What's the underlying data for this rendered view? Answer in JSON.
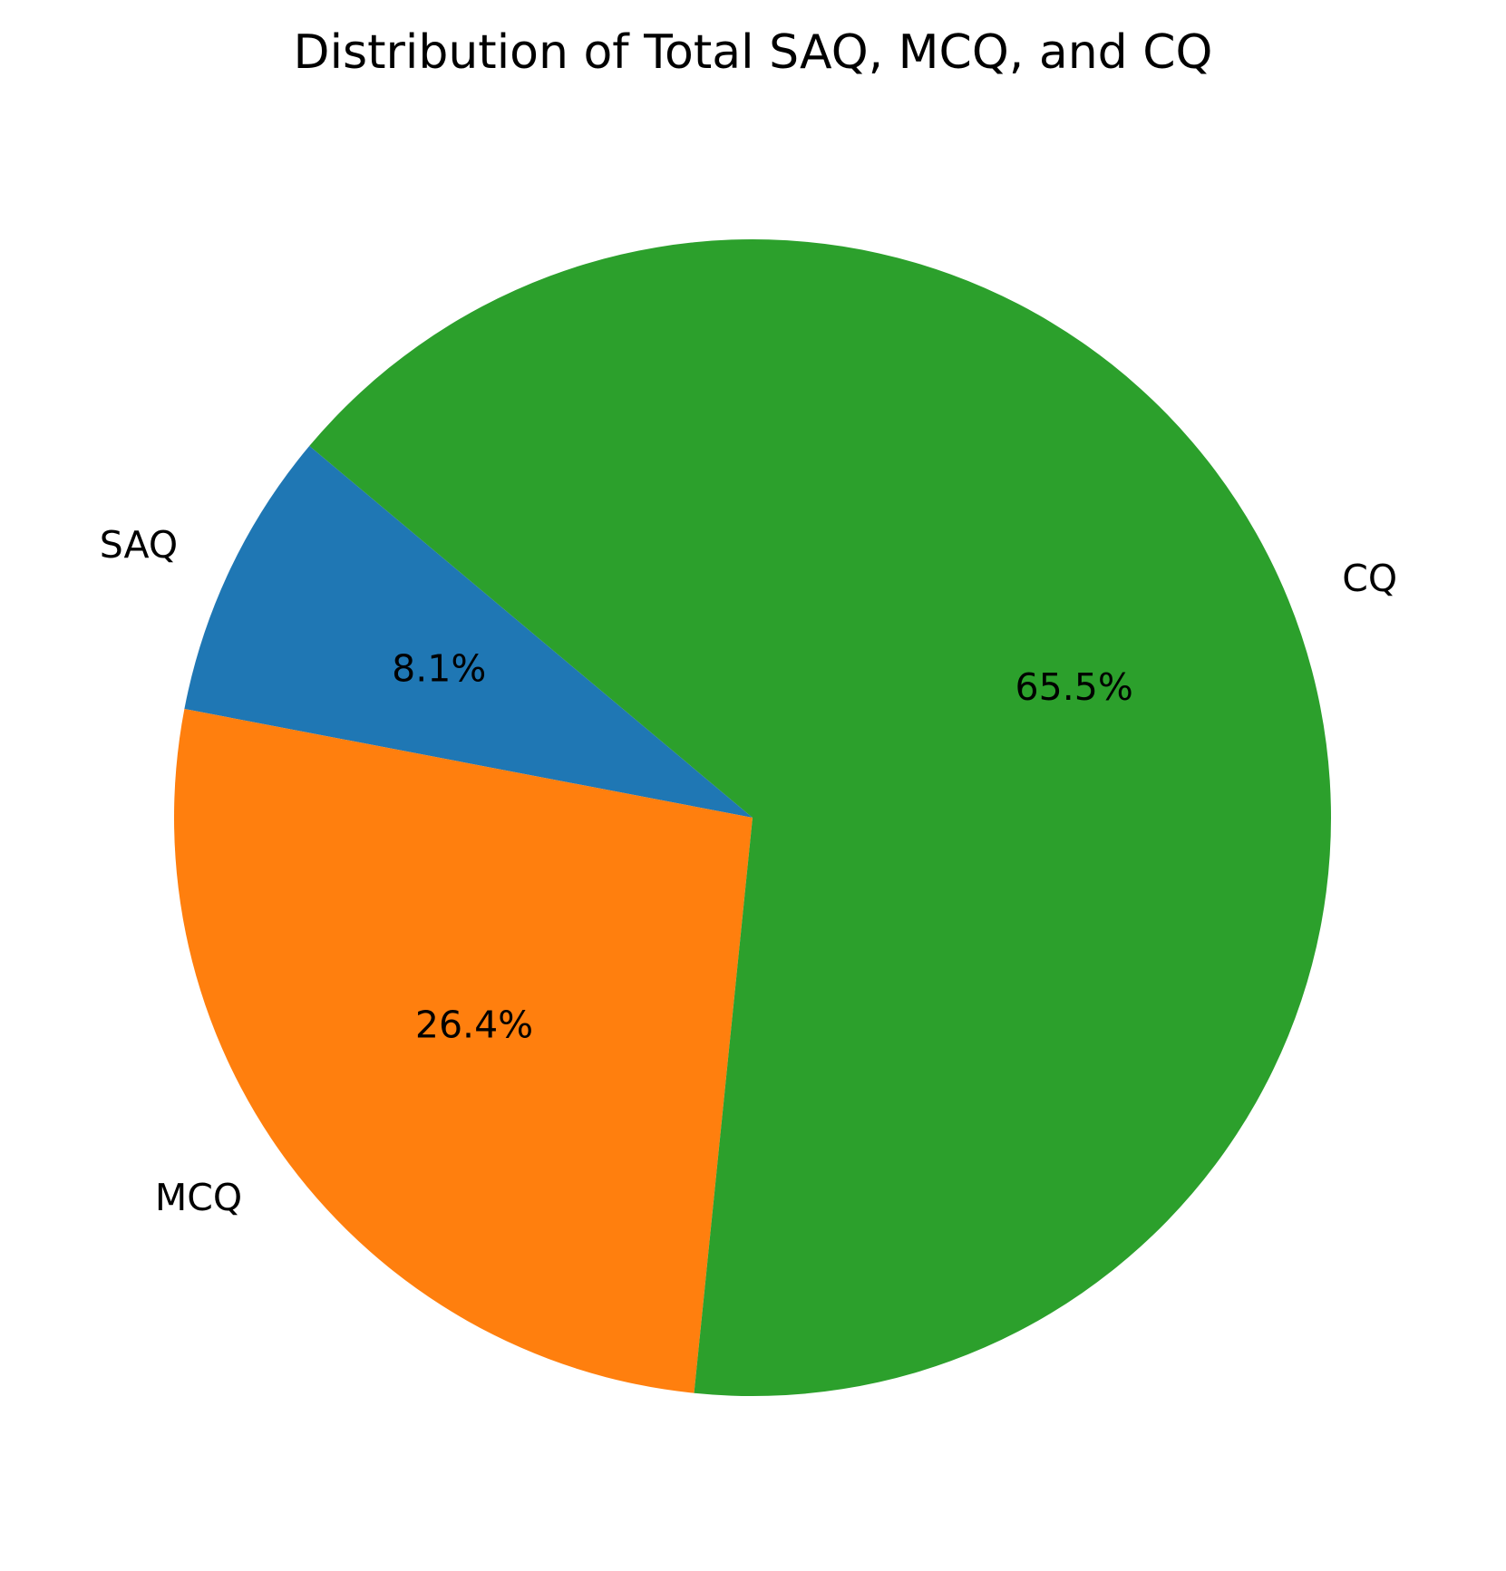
{
  "chart_data": {
    "type": "pie",
    "title": "Distribution of Total SAQ, MCQ, and CQ",
    "start_angle_deg": 140,
    "direction": "counterclockwise",
    "slices": [
      {
        "label": "SAQ",
        "value": 8.1,
        "pct_label": "8.1%",
        "color": "#1f77b4"
      },
      {
        "label": "MCQ",
        "value": 26.4,
        "pct_label": "26.4%",
        "color": "#ff7f0e"
      },
      {
        "label": "CQ",
        "value": 65.5,
        "pct_label": "65.5%",
        "color": "#2ca02c"
      }
    ]
  }
}
